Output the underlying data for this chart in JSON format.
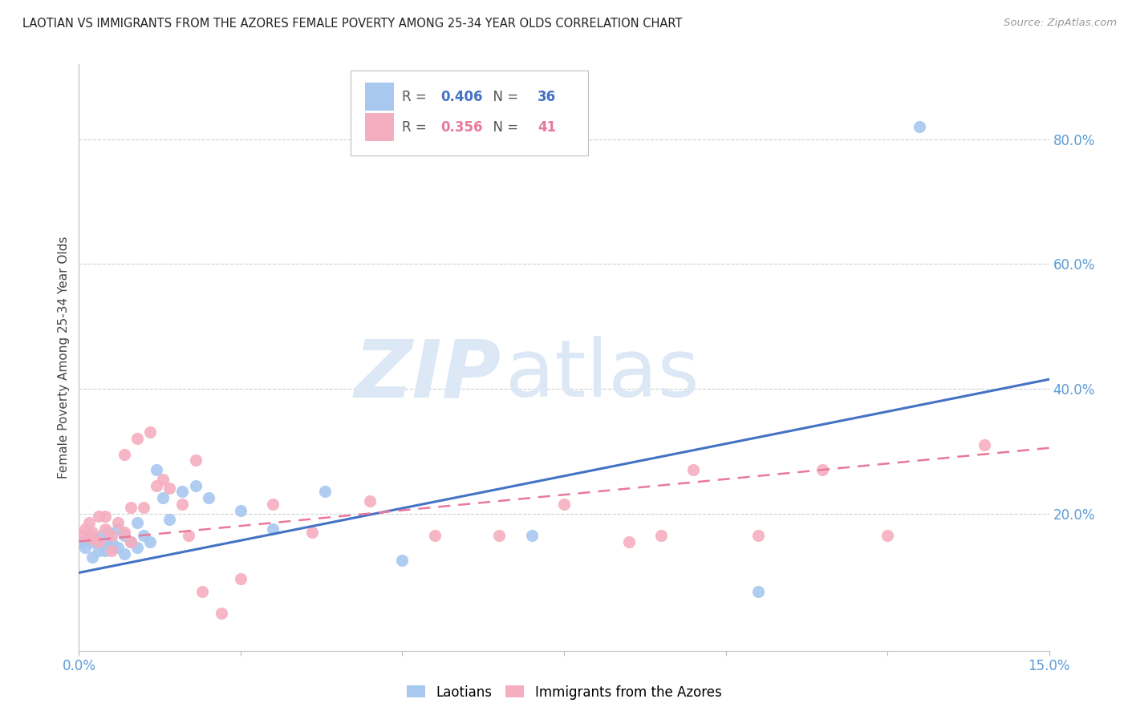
{
  "title": "LAOTIAN VS IMMIGRANTS FROM THE AZORES FEMALE POVERTY AMONG 25-34 YEAR OLDS CORRELATION CHART",
  "source": "Source: ZipAtlas.com",
  "ylabel": "Female Poverty Among 25-34 Year Olds",
  "xlim": [
    0.0,
    0.15
  ],
  "ylim": [
    -0.02,
    0.92
  ],
  "xticks": [
    0.0,
    0.025,
    0.05,
    0.075,
    0.1,
    0.125,
    0.15
  ],
  "xtick_labels": [
    "0.0%",
    "",
    "",
    "",
    "",
    "",
    "15.0%"
  ],
  "ytick_positions_right": [
    0.2,
    0.4,
    0.6,
    0.8
  ],
  "ytick_labels_right": [
    "20.0%",
    "40.0%",
    "60.0%",
    "80.0%"
  ],
  "laotian_color": "#a8c8f0",
  "azores_color": "#f5aec0",
  "laotian_line_color": "#4472c4",
  "azores_line_color": "#e8799a",
  "R_laotian": "0.406",
  "N_laotian": "36",
  "R_azores": "0.356",
  "N_azores": "41",
  "background_color": "#ffffff",
  "watermark_zip": "ZIP",
  "watermark_atlas": "atlas",
  "watermark_color": "#dce8f5",
  "grid_color": "#d0d0d0",
  "laotian_scatter_x": [
    0.0005,
    0.001,
    0.0015,
    0.002,
    0.002,
    0.0025,
    0.003,
    0.003,
    0.0035,
    0.004,
    0.004,
    0.0045,
    0.005,
    0.005,
    0.006,
    0.006,
    0.007,
    0.007,
    0.008,
    0.009,
    0.009,
    0.01,
    0.011,
    0.012,
    0.013,
    0.014,
    0.016,
    0.018,
    0.02,
    0.025,
    0.03,
    0.038,
    0.05,
    0.07,
    0.105,
    0.13
  ],
  "laotian_scatter_y": [
    0.155,
    0.145,
    0.16,
    0.155,
    0.13,
    0.16,
    0.155,
    0.14,
    0.165,
    0.155,
    0.14,
    0.17,
    0.155,
    0.145,
    0.175,
    0.145,
    0.165,
    0.135,
    0.155,
    0.185,
    0.145,
    0.165,
    0.155,
    0.27,
    0.225,
    0.19,
    0.235,
    0.245,
    0.225,
    0.205,
    0.175,
    0.235,
    0.125,
    0.165,
    0.075,
    0.82
  ],
  "azores_scatter_x": [
    0.0005,
    0.001,
    0.0015,
    0.002,
    0.002,
    0.003,
    0.003,
    0.004,
    0.004,
    0.005,
    0.005,
    0.006,
    0.007,
    0.007,
    0.008,
    0.008,
    0.009,
    0.01,
    0.011,
    0.012,
    0.013,
    0.014,
    0.016,
    0.017,
    0.018,
    0.019,
    0.022,
    0.025,
    0.03,
    0.036,
    0.045,
    0.055,
    0.065,
    0.075,
    0.085,
    0.09,
    0.095,
    0.105,
    0.115,
    0.125,
    0.14
  ],
  "azores_scatter_y": [
    0.165,
    0.175,
    0.185,
    0.17,
    0.16,
    0.195,
    0.155,
    0.175,
    0.195,
    0.165,
    0.14,
    0.185,
    0.295,
    0.17,
    0.155,
    0.21,
    0.32,
    0.21,
    0.33,
    0.245,
    0.255,
    0.24,
    0.215,
    0.165,
    0.285,
    0.075,
    0.04,
    0.095,
    0.215,
    0.17,
    0.22,
    0.165,
    0.165,
    0.215,
    0.155,
    0.165,
    0.27,
    0.165,
    0.27,
    0.165,
    0.31
  ],
  "laotian_trend_x": [
    0.0,
    0.15
  ],
  "laotian_trend_y": [
    0.105,
    0.415
  ],
  "azores_trend_x": [
    0.0,
    0.15
  ],
  "azores_trend_y": [
    0.155,
    0.305
  ]
}
